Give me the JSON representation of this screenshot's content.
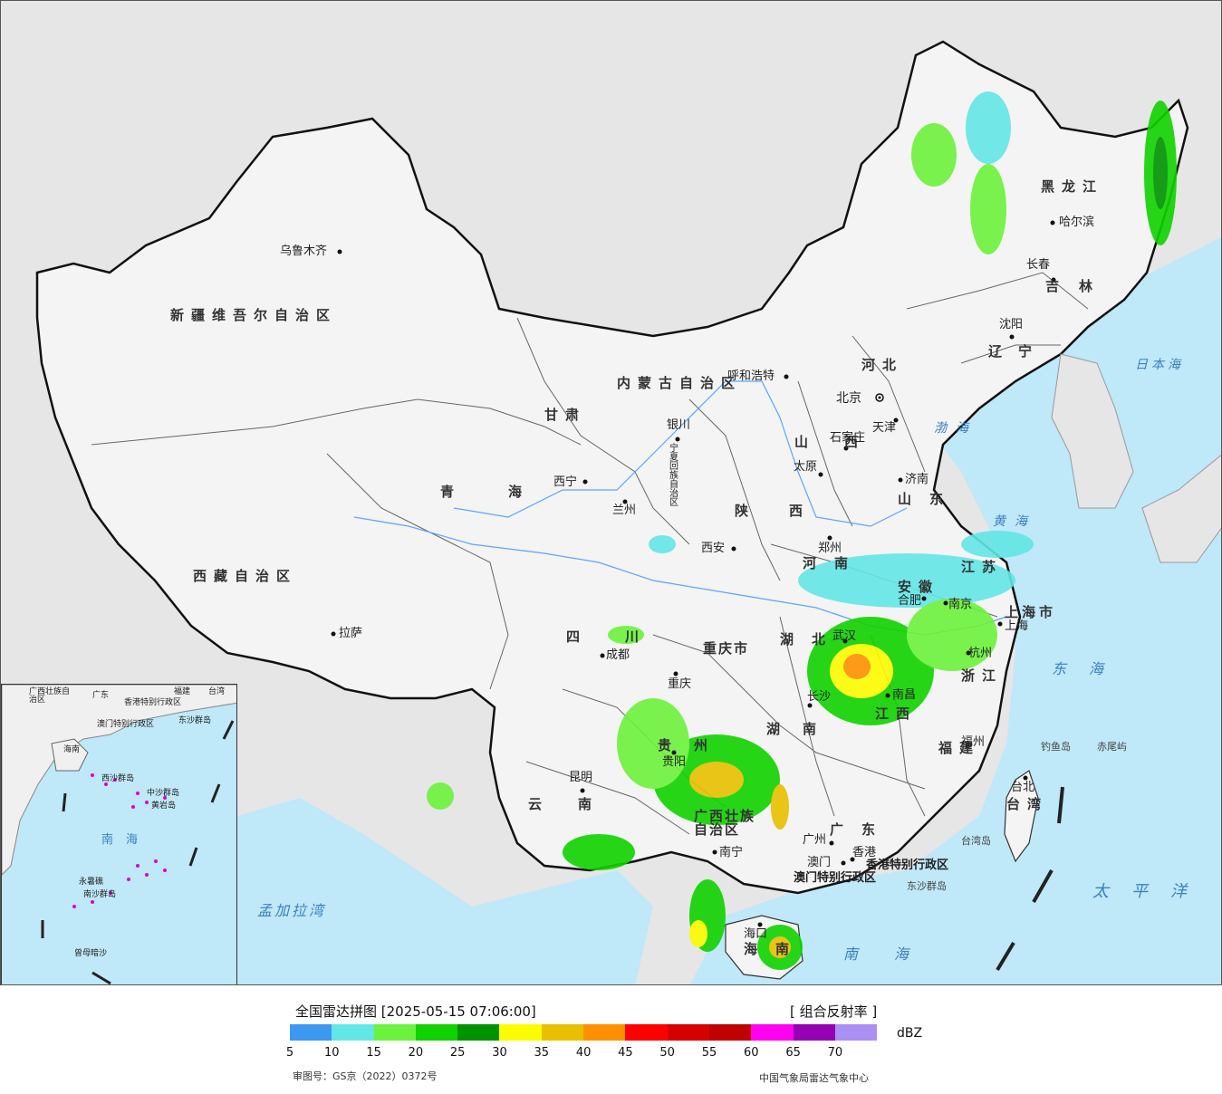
{
  "map": {
    "provinces": [
      {
        "name": "新疆维吾尔自治区",
        "id": "xinjiang"
      },
      {
        "name": "西藏自治区",
        "id": "xizang"
      },
      {
        "name": "青海",
        "id": "qinghai"
      },
      {
        "name": "甘肃",
        "id": "gansu"
      },
      {
        "name": "内蒙古自治区",
        "id": "neimenggu"
      },
      {
        "name": "黑龙江",
        "id": "heilongjiang"
      },
      {
        "name": "吉林",
        "id": "jilin"
      },
      {
        "name": "辽宁",
        "id": "liaoning"
      },
      {
        "name": "河北",
        "id": "hebei"
      },
      {
        "name": "山西",
        "id": "shanxi"
      },
      {
        "name": "陕西",
        "id": "shaanxi"
      },
      {
        "name": "河南",
        "id": "henan"
      },
      {
        "name": "山东",
        "id": "shandong"
      },
      {
        "name": "江苏",
        "id": "jiangsu"
      },
      {
        "name": "安徽",
        "id": "anhui"
      },
      {
        "name": "上海市",
        "id": "shanghai"
      },
      {
        "name": "浙江",
        "id": "zhejiang"
      },
      {
        "name": "江西",
        "id": "jiangxi"
      },
      {
        "name": "湖北",
        "id": "hubei"
      },
      {
        "name": "湖南",
        "id": "hunan"
      },
      {
        "name": "四川",
        "id": "sichuan"
      },
      {
        "name": "重庆市",
        "id": "chongqing"
      },
      {
        "name": "贵州",
        "id": "guizhou"
      },
      {
        "name": "云南",
        "id": "yunnan"
      },
      {
        "name": "广西壮族自治区",
        "id": "guangxi"
      },
      {
        "name": "广东",
        "id": "guangdong"
      },
      {
        "name": "福建",
        "id": "fujian"
      },
      {
        "name": "台湾",
        "id": "taiwan"
      },
      {
        "name": "海南",
        "id": "hainan"
      },
      {
        "name": "宁夏回族自治区",
        "id": "ningxia"
      },
      {
        "name": "香港特别行政区",
        "id": "hongkong"
      },
      {
        "name": "澳门特别行政区",
        "id": "macau"
      }
    ],
    "cities": [
      "乌鲁木齐",
      "拉萨",
      "西宁",
      "兰州",
      "银川",
      "呼和浩特",
      "北京",
      "天津",
      "石家庄",
      "太原",
      "西安",
      "郑州",
      "济南",
      "南京",
      "合肥",
      "上海",
      "杭州",
      "南昌",
      "长沙",
      "武汉",
      "成都",
      "重庆",
      "贵阳",
      "昆明",
      "南宁",
      "广州",
      "香港",
      "澳门",
      "海口",
      "福州",
      "台北",
      "沈阳",
      "长春",
      "哈尔滨"
    ],
    "islands": [
      "钓鱼岛",
      "赤尾屿",
      "东沙群岛",
      "台湾岛"
    ],
    "seas": [
      "日本海",
      "渤海",
      "黄海",
      "东海",
      "太平洋",
      "南海",
      "孟加拉湾"
    ],
    "inset": {
      "labels": [
        "广西壮族自治区",
        "广东",
        "福建",
        "台湾",
        "香港特别行政区",
        "澳门特别行政区",
        "东沙群岛",
        "海南",
        "中沙群岛",
        "黄岩岛",
        "西沙群岛",
        "南沙群岛",
        "南海",
        "永暑礁",
        "曾母暗沙"
      ]
    }
  },
  "legend": {
    "title": "全国雷达拼图 [2025-05-15 07:06:00]",
    "product": "[ 组合反射率 ]",
    "unit": "dBZ",
    "colors": [
      "#3d98f0",
      "#63e6e6",
      "#6cf23c",
      "#11d200",
      "#009300",
      "#fcfc00",
      "#e8c000",
      "#ff9100",
      "#ff0000",
      "#d70000",
      "#c00000",
      "#ff00f0",
      "#9600b4",
      "#ac8ff2"
    ],
    "ticks": [
      "5",
      "10",
      "15",
      "20",
      "25",
      "30",
      "35",
      "40",
      "45",
      "50",
      "55",
      "60",
      "65",
      "70"
    ],
    "approval": "审图号：GS京（2022）0372号",
    "agency": "中国气象局雷达气象中心"
  }
}
